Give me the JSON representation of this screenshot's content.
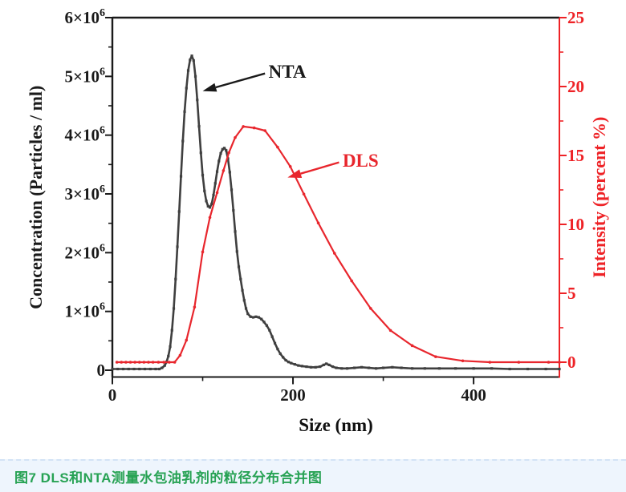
{
  "caption": {
    "text": "图7 DLS和NTA测量水包油乳剂的粒径分布合并图",
    "color": "#27a254",
    "bg": "#eef5fd"
  },
  "chart_data": {
    "type": "line",
    "title": "",
    "xlabel": "Size (nm)",
    "xlim": [
      0,
      495
    ],
    "x_axis": {
      "major_ticks": [
        {
          "v": 0,
          "label": "0"
        },
        {
          "v": 200,
          "label": "200"
        },
        {
          "v": 400,
          "label": "400"
        }
      ],
      "minor_ticks": [
        100,
        300
      ],
      "color": "#1a1a1a"
    },
    "left_axis": {
      "label": "Concentration (Particles / ml)",
      "unit": "particles/ml, values stored as ×10^6",
      "lim": [
        -0.116,
        6
      ],
      "major_ticks": [
        {
          "v": 0,
          "label": "0"
        },
        {
          "v": 1,
          "label": "1×10^6"
        },
        {
          "v": 2,
          "label": "2×10^6"
        },
        {
          "v": 3,
          "label": "3×10^6"
        },
        {
          "v": 4,
          "label": "4×10^6"
        },
        {
          "v": 5,
          "label": "5×10^6"
        },
        {
          "v": 6,
          "label": "6×10^6"
        }
      ],
      "minor_ticks": [
        0.5,
        1.5,
        2.5,
        3.5,
        4.5,
        5.5
      ],
      "color": "#1a1a1a"
    },
    "right_axis": {
      "label": "Intensity (percent %)",
      "lim": [
        -1.076,
        25
      ],
      "major_ticks": [
        {
          "v": 0,
          "label": "0"
        },
        {
          "v": 5,
          "label": "5"
        },
        {
          "v": 10,
          "label": "10"
        },
        {
          "v": 15,
          "label": "15"
        },
        {
          "v": 20,
          "label": "20"
        },
        {
          "v": 25,
          "label": "25"
        }
      ],
      "minor_ticks": [
        2.5,
        7.5,
        12.5,
        17.5,
        22.5
      ],
      "color": "#ee2226"
    },
    "legend_position": "annotations-on-plot",
    "grid": false,
    "series": [
      {
        "name": "NTA",
        "axis": "left",
        "color": "#3f3f3f",
        "marker": "square",
        "points": [
          [
            0,
            0.02
          ],
          [
            6,
            0.02
          ],
          [
            12,
            0.02
          ],
          [
            18,
            0.02
          ],
          [
            24,
            0.02
          ],
          [
            30,
            0.02
          ],
          [
            36,
            0.02
          ],
          [
            42,
            0.02
          ],
          [
            48,
            0.02
          ],
          [
            52,
            0.02
          ],
          [
            55,
            0.04
          ],
          [
            58,
            0.08
          ],
          [
            60,
            0.14
          ],
          [
            62,
            0.24
          ],
          [
            64,
            0.4
          ],
          [
            66,
            0.68
          ],
          [
            68,
            1.05
          ],
          [
            70,
            1.55
          ],
          [
            72,
            2.1
          ],
          [
            74,
            2.7
          ],
          [
            76,
            3.3
          ],
          [
            78,
            3.9
          ],
          [
            80,
            4.4
          ],
          [
            82,
            4.8
          ],
          [
            84,
            5.1
          ],
          [
            86,
            5.28
          ],
          [
            88,
            5.35
          ],
          [
            90,
            5.27
          ],
          [
            92,
            5.0
          ],
          [
            94,
            4.6
          ],
          [
            96,
            4.15
          ],
          [
            98,
            3.7
          ],
          [
            100,
            3.32
          ],
          [
            102,
            3.05
          ],
          [
            104,
            2.88
          ],
          [
            106,
            2.79
          ],
          [
            108,
            2.77
          ],
          [
            110,
            2.83
          ],
          [
            112,
            2.98
          ],
          [
            114,
            3.18
          ],
          [
            116,
            3.38
          ],
          [
            118,
            3.56
          ],
          [
            120,
            3.69
          ],
          [
            122,
            3.76
          ],
          [
            124,
            3.78
          ],
          [
            126,
            3.74
          ],
          [
            128,
            3.6
          ],
          [
            130,
            3.37
          ],
          [
            132,
            3.07
          ],
          [
            134,
            2.72
          ],
          [
            136,
            2.36
          ],
          [
            138,
            2.02
          ],
          [
            140,
            1.76
          ],
          [
            142,
            1.55
          ],
          [
            144,
            1.36
          ],
          [
            146,
            1.19
          ],
          [
            148,
            1.05
          ],
          [
            150,
            0.96
          ],
          [
            153,
            0.91
          ],
          [
            156,
            0.9
          ],
          [
            159,
            0.91
          ],
          [
            162,
            0.9
          ],
          [
            165,
            0.87
          ],
          [
            168,
            0.82
          ],
          [
            171,
            0.76
          ],
          [
            174,
            0.68
          ],
          [
            177,
            0.57
          ],
          [
            180,
            0.46
          ],
          [
            183,
            0.36
          ],
          [
            186,
            0.28
          ],
          [
            189,
            0.22
          ],
          [
            192,
            0.17
          ],
          [
            195,
            0.14
          ],
          [
            198,
            0.12
          ],
          [
            202,
            0.1
          ],
          [
            206,
            0.08
          ],
          [
            210,
            0.07
          ],
          [
            215,
            0.06
          ],
          [
            220,
            0.05
          ],
          [
            225,
            0.05
          ],
          [
            230,
            0.06
          ],
          [
            234,
            0.09
          ],
          [
            237,
            0.11
          ],
          [
            240,
            0.09
          ],
          [
            244,
            0.06
          ],
          [
            248,
            0.04
          ],
          [
            254,
            0.03
          ],
          [
            260,
            0.03
          ],
          [
            268,
            0.04
          ],
          [
            276,
            0.05
          ],
          [
            284,
            0.04
          ],
          [
            292,
            0.03
          ],
          [
            300,
            0.04
          ],
          [
            310,
            0.05
          ],
          [
            320,
            0.04
          ],
          [
            332,
            0.03
          ],
          [
            346,
            0.03
          ],
          [
            362,
            0.03
          ],
          [
            380,
            0.03
          ],
          [
            400,
            0.03
          ],
          [
            420,
            0.03
          ],
          [
            440,
            0.02
          ],
          [
            460,
            0.02
          ],
          [
            480,
            0.02
          ],
          [
            495,
            0.02
          ]
        ]
      },
      {
        "name": "DLS",
        "axis": "right",
        "color": "#e8262d",
        "marker": "circle",
        "points": [
          [
            5,
            0
          ],
          [
            10,
            0
          ],
          [
            15,
            0
          ],
          [
            20,
            0
          ],
          [
            25,
            0
          ],
          [
            30,
            0
          ],
          [
            35,
            0
          ],
          [
            40,
            0
          ],
          [
            45,
            0
          ],
          [
            51,
            0
          ],
          [
            57,
            0
          ],
          [
            63,
            0
          ],
          [
            69,
            0
          ],
          [
            75,
            0.5
          ],
          [
            82,
            1.6
          ],
          [
            91,
            4.0
          ],
          [
            100,
            8.0
          ],
          [
            108,
            10.5
          ],
          [
            116,
            12.3
          ],
          [
            123,
            13.9
          ],
          [
            129,
            15.2
          ],
          [
            136,
            16.3
          ],
          [
            145,
            17.1
          ],
          [
            157,
            17.0
          ],
          [
            169,
            16.8
          ],
          [
            183,
            15.6
          ],
          [
            197,
            14.2
          ],
          [
            212,
            12.2
          ],
          [
            228,
            10.1
          ],
          [
            246,
            7.9
          ],
          [
            265,
            5.9
          ],
          [
            286,
            3.9
          ],
          [
            308,
            2.3
          ],
          [
            332,
            1.2
          ],
          [
            358,
            0.4
          ],
          [
            388,
            0.1
          ],
          [
            418,
            0
          ],
          [
            450,
            0
          ],
          [
            483,
            0
          ],
          [
            495,
            0
          ]
        ]
      }
    ],
    "annotations": [
      {
        "label": "NTA",
        "color": "#1a1a1a",
        "axis": "left",
        "label_at": [
          173,
          4.98
        ],
        "arrow_from": [
          169,
          5.05
        ],
        "arrow_to": [
          100,
          4.75
        ]
      },
      {
        "label": "DLS",
        "color": "#e8262d",
        "axis": "right",
        "label_at": [
          255,
          14.2
        ],
        "arrow_from": [
          251,
          14.5
        ],
        "arrow_to": [
          194,
          13.4
        ]
      }
    ]
  }
}
